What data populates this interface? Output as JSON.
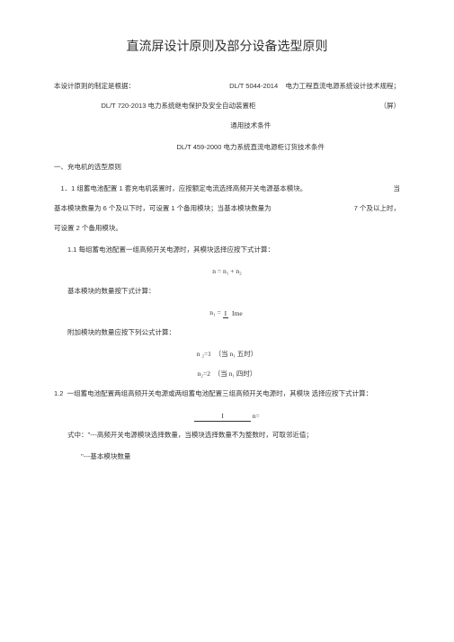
{
  "title": "直流屏设计原则及部分设备选型原则",
  "intro": "本设计原则的制定是根据：",
  "std1_code": "DL/T 5044-2014",
  "std1_name": "电力工程直流电源系统设计技术规程；",
  "std2_code": "DL/T 720-2013",
  "std2_name": "电力系统继电保护及安全自动装置柜",
  "std2_note": "（屏）",
  "std2_sub": "通用技术条件",
  "std3_code": "DL/T 459-2000",
  "std3_name": "电力系统直流电源柜订货技术条件",
  "sec1": "一、充电机的选型原则",
  "sec1_1_a": "1．1 组蓄电池配置 1 套充电机装置时，应按额定电流选择高频开关电源基本模块。",
  "sec1_1_a_tail": "当",
  "sec1_1_b_left": "基本模块数量为 6 个及以下时，可设置 1 个备用模块；当基本模块数量为",
  "sec1_1_b_right": "7 个及以上时，",
  "sec1_1_c": "可设置 2 个备用模块。",
  "sec1_1_sub1": "1.1 每组蓄电池配置一组高频开关电源时，其模块选择应按下式计算：",
  "formula1": "n = n₁ + n₂",
  "sec_basic_count": "基本模块的数量按下式计算：",
  "formula2_lhs": "n₁ =",
  "formula2_top": "I",
  "formula2_bot": "Ime",
  "sec_add_count": "附加模块的数量应按下列公式计算：",
  "formula3a_left": "n",
  "formula3a_right": " ₂=1&nbsp;&nbsp;（当 n₁ 五时）",
  "formula3b": "n₂=2&nbsp;&nbsp;（当 n₁ 四时）",
  "sec1_2": "1.2&nbsp;&nbsp;一组蓄电池配置两组高频开关电源或两组蓄电池配置三组高频开关电源时，其模块 选择应按下式计算：",
  "formula4_top": "I",
  "formula4_bot": "n=",
  "formula_end": "式中：''---高频开关电源模块选择数量，当模块选择数量不为整数时，可取邻近值；",
  "formula_end2": "''---基本模块数量"
}
